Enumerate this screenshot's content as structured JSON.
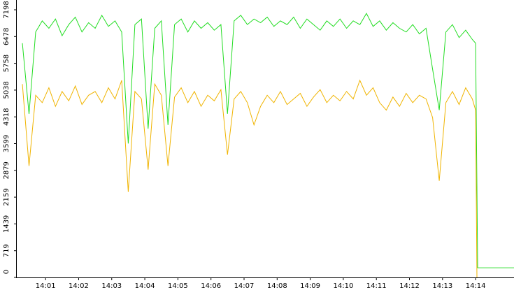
{
  "chart_data": {
    "type": "line",
    "x": [
      0.3,
      0.5,
      0.7,
      0.9,
      1.1,
      1.3,
      1.5,
      1.7,
      1.9,
      2.1,
      2.3,
      2.5,
      2.7,
      2.9,
      3.1,
      3.3,
      3.5,
      3.7,
      3.9,
      4.1,
      4.3,
      4.5,
      4.7,
      4.9,
      5.1,
      5.3,
      5.5,
      5.7,
      5.9,
      6.1,
      6.3,
      6.5,
      6.7,
      6.9,
      7.1,
      7.3,
      7.5,
      7.7,
      7.9,
      8.1,
      8.3,
      8.5,
      8.7,
      8.9,
      9.1,
      9.3,
      9.5,
      9.7,
      9.9,
      10.1,
      10.3,
      10.5,
      10.7,
      10.9,
      11.1,
      11.3,
      11.5,
      11.7,
      11.9,
      12.1,
      12.3,
      12.5,
      12.7,
      12.9,
      13.1,
      13.3,
      13.5,
      13.7,
      13.9,
      14.0,
      14.04,
      14.06,
      15.16
    ],
    "series": [
      {
        "color": "#22dd22",
        "values": [
          6300,
          4400,
          6600,
          6900,
          6700,
          6950,
          6500,
          6800,
          7000,
          6600,
          6850,
          6700,
          7050,
          6750,
          6900,
          6600,
          3600,
          6800,
          6950,
          4000,
          6700,
          6900,
          4100,
          6800,
          6950,
          6600,
          6900,
          6700,
          6850,
          6650,
          6800,
          4400,
          6900,
          7050,
          6800,
          6950,
          6850,
          7000,
          6750,
          6900,
          6800,
          7000,
          6700,
          6950,
          6800,
          6650,
          6900,
          6750,
          6950,
          6700,
          6900,
          6800,
          7100,
          6750,
          6900,
          6650,
          6850,
          6700,
          6600,
          6800,
          6550,
          6700,
          5600,
          4500,
          6600,
          6800,
          6450,
          6650,
          6400,
          6300,
          2400,
          260,
          260
        ]
      },
      {
        "color": "#f0b400",
        "values": [
          5200,
          3000,
          4900,
          4700,
          5100,
          4600,
          5000,
          4750,
          5150,
          4650,
          4900,
          5000,
          4700,
          5100,
          4800,
          5300,
          2300,
          5000,
          4800,
          2900,
          5200,
          4900,
          3000,
          4850,
          5100,
          4700,
          5000,
          4600,
          4900,
          4750,
          5050,
          3300,
          4800,
          5000,
          4700,
          4100,
          4600,
          4900,
          4700,
          5000,
          4650,
          4800,
          4950,
          4600,
          4850,
          5050,
          4700,
          4900,
          4750,
          5000,
          4800,
          5300,
          4900,
          5100,
          4700,
          4500,
          4850,
          4600,
          4950,
          4700,
          4900,
          4800,
          4300,
          2600,
          4700,
          5000,
          4650,
          5100,
          4800,
          4500,
          0,
          null,
          null
        ]
      }
    ],
    "xlim": [
      0.13,
      15.16
    ],
    "xticks": [
      {
        "value": 1,
        "label": "14:01"
      },
      {
        "value": 2,
        "label": "14:02"
      },
      {
        "value": 3,
        "label": "14:03"
      },
      {
        "value": 4,
        "label": "14:04"
      },
      {
        "value": 5,
        "label": "14:05"
      },
      {
        "value": 6,
        "label": "14:06"
      },
      {
        "value": 7,
        "label": "14:07"
      },
      {
        "value": 8,
        "label": "14:08"
      },
      {
        "value": 9,
        "label": "14:09"
      },
      {
        "value": 10,
        "label": "14:10"
      },
      {
        "value": 11,
        "label": "14:11"
      },
      {
        "value": 12,
        "label": "14:12"
      },
      {
        "value": 13,
        "label": "14:13"
      },
      {
        "value": 14,
        "label": "14:14"
      }
    ],
    "ylim": [
      0,
      7461
    ],
    "yticks": [
      0,
      719,
      1439,
      2159,
      2879,
      3599,
      4318,
      5038,
      5758,
      6478,
      7198
    ]
  }
}
